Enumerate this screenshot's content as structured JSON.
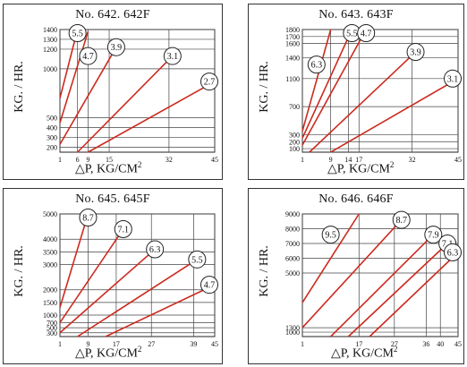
{
  "chart_data": [
    {
      "type": "line",
      "title": "No. 642. 642F",
      "ylabel": "KG. / HR.",
      "xlabel_main": "△P,  KG/CM",
      "xlabel_sup": "2",
      "x_ticks": [
        1,
        6,
        9,
        15,
        32,
        45
      ],
      "y_ticks": [
        200,
        300,
        400,
        500,
        1000,
        1200,
        1300,
        1400
      ],
      "xlim": [
        1,
        45
      ],
      "ylim": [
        150,
        1400
      ],
      "series": [
        {
          "name": "5.5",
          "points": [
            [
              1,
              700
            ],
            [
              6,
              1400
            ]
          ]
        },
        {
          "name": "4.7",
          "points": [
            [
              1,
              450
            ],
            [
              9,
              1380
            ]
          ]
        },
        {
          "name": "3.9",
          "points": [
            [
              1,
              230
            ],
            [
              17,
              1220
            ]
          ]
        },
        {
          "name": "3.1",
          "points": [
            [
              6,
              150
            ],
            [
              33,
              1130
            ]
          ]
        },
        {
          "name": "2.7",
          "points": [
            [
              9,
              150
            ],
            [
              45,
              870
            ]
          ]
        }
      ]
    },
    {
      "type": "line",
      "title": "No. 643. 643F",
      "ylabel": "KG. / HR.",
      "xlabel_main": "△P,  KG/CM",
      "xlabel_sup": "2",
      "x_ticks": [
        1,
        9,
        14,
        17,
        32,
        45
      ],
      "y_ticks": [
        100,
        200,
        300,
        700,
        1100,
        1400,
        1600,
        1700,
        1800
      ],
      "xlim": [
        1,
        45
      ],
      "ylim": [
        50,
        1800
      ],
      "series": [
        {
          "name": "6.3",
          "points": [
            [
              1,
              350
            ],
            [
              9,
              1800
            ]
          ]
        },
        {
          "name": "5.5",
          "points": [
            [
              1,
              250
            ],
            [
              15,
              1800
            ]
          ]
        },
        {
          "name": "4.7",
          "points": [
            [
              1,
              150
            ],
            [
              19,
              1800
            ]
          ]
        },
        {
          "name": "3.9",
          "points": [
            [
              3,
              50
            ],
            [
              33,
              1480
            ]
          ]
        },
        {
          "name": "3.1",
          "points": [
            [
              9,
              50
            ],
            [
              45,
              1100
            ]
          ]
        }
      ]
    },
    {
      "type": "line",
      "title": "No. 645. 645F",
      "ylabel": "KG. / HR.",
      "xlabel_main": "△P,  KG/CM",
      "xlabel_sup": "2",
      "x_ticks": [
        1,
        9,
        17,
        27,
        39,
        45
      ],
      "y_ticks": [
        300,
        500,
        700,
        1000,
        1500,
        2000,
        3000,
        3500,
        4000,
        5000
      ],
      "xlim": [
        1,
        45
      ],
      "ylim": [
        150,
        5000
      ],
      "series": [
        {
          "name": "8.7",
          "points": [
            [
              1,
              1300
            ],
            [
              9,
              5000
            ]
          ]
        },
        {
          "name": "7.1",
          "points": [
            [
              1,
              700
            ],
            [
              19,
              4400
            ]
          ]
        },
        {
          "name": "6.3",
          "points": [
            [
              1,
              300
            ],
            [
              28,
              3600
            ]
          ]
        },
        {
          "name": "5.5",
          "points": [
            [
              6,
              150
            ],
            [
              40,
              3200
            ]
          ]
        },
        {
          "name": "4.7",
          "points": [
            [
              14,
              150
            ],
            [
              45,
              2200
            ]
          ]
        }
      ]
    },
    {
      "type": "line",
      "title": "No. 646. 646F",
      "ylabel": "KG. / HR.",
      "xlabel_main": "△P,  KG/CM",
      "xlabel_sup": "2",
      "x_ticks": [
        1,
        17,
        27,
        36,
        40,
        45
      ],
      "y_ticks": [
        1000,
        1300,
        5000,
        6000,
        7000,
        8000,
        9000
      ],
      "xlim": [
        1,
        45
      ],
      "ylim": [
        700,
        9000
      ],
      "series": [
        {
          "name": "9.5",
          "points": [
            [
              1,
              3000
            ],
            [
              17,
              9000
            ]
          ]
        },
        {
          "name": "8.7",
          "points": [
            [
              1,
              1300
            ],
            [
              29,
              8600
            ]
          ]
        },
        {
          "name": "7.9",
          "points": [
            [
              9,
              700
            ],
            [
              38,
              7600
            ]
          ]
        },
        {
          "name": "7.1",
          "points": [
            [
              14,
              700
            ],
            [
              42,
              7000
            ]
          ]
        },
        {
          "name": "6.3",
          "points": [
            [
              20,
              700
            ],
            [
              45,
              6400
            ]
          ]
        }
      ]
    }
  ]
}
